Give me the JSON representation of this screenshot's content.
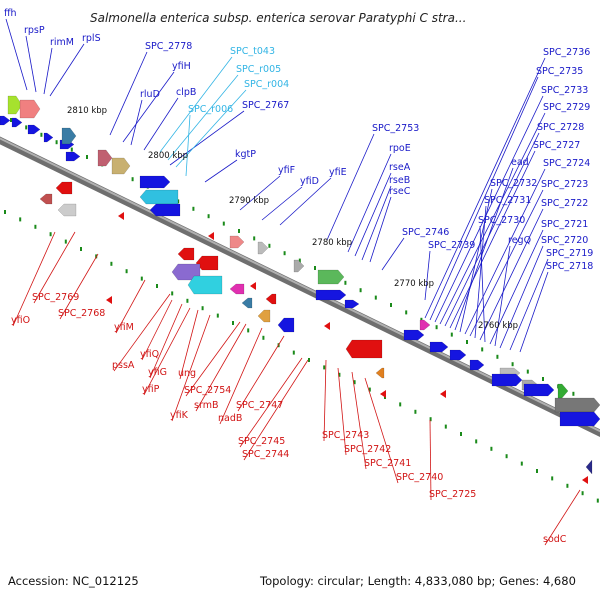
{
  "header": {
    "title": "Salmonella enterica subsp. enterica serovar Paratyphi C stra..."
  },
  "footer": {
    "accession": "Accession: NC_012125",
    "summary": "Topology: circular; Length: 4,833,080 bp; Genes: 4,680"
  },
  "colors": {
    "forward_label": "#1a1ac8",
    "rna_label": "#33b5e5",
    "reverse_label": "#d11414",
    "forward_gene": "#1515e0",
    "reverse_gene": "#e01010",
    "backbone": "#6f6f6f",
    "tick": "#1a8a1a"
  },
  "scale_labels": [
    "2810 kbp",
    "2800 kbp",
    "2790 kbp",
    "2780 kbp",
    "2770 kbp",
    "2760 kbp"
  ],
  "forward_labels": [
    "ffh",
    "rpsP",
    "rimM",
    "rplS",
    "SPC_2778",
    "yfiH",
    "rluD",
    "clpB",
    "SPC_2767",
    "kgtP",
    "yfiF",
    "yfiD",
    "yfiE",
    "SPC_2753",
    "rpoE",
    "rseA",
    "rseB",
    "rseC",
    "SPC_2746",
    "SPC_2739",
    "SPC_2736",
    "SPC_2735",
    "SPC_2733",
    "SPC_2729",
    "SPC_2728",
    "SPC_2727",
    "ead",
    "SPC_2732",
    "SPC_2724",
    "SPC_2723",
    "SPC_2731",
    "SPC_2722",
    "SPC_2730",
    "SPC_2721",
    "regQ",
    "SPC_2720",
    "SPC_2719",
    "SPC_2718"
  ],
  "rna_labels": [
    "SPC_t043",
    "SPC_r005",
    "SPC_r004",
    "SPC_r006"
  ],
  "reverse_labels": [
    "SPC_2769",
    "yfiO",
    "SPC_2768",
    "yfiM",
    "pssA",
    "yfiQ",
    "yfiG",
    "ung",
    "yfiP",
    "SPC_2754",
    "srmB",
    "yfiK",
    "nadB",
    "SPC_2747",
    "SPC_2745",
    "SPC_2743",
    "SPC_2744",
    "SPC_2742",
    "SPC_2741",
    "SPC_2740",
    "SPC_2725",
    "sodC"
  ]
}
